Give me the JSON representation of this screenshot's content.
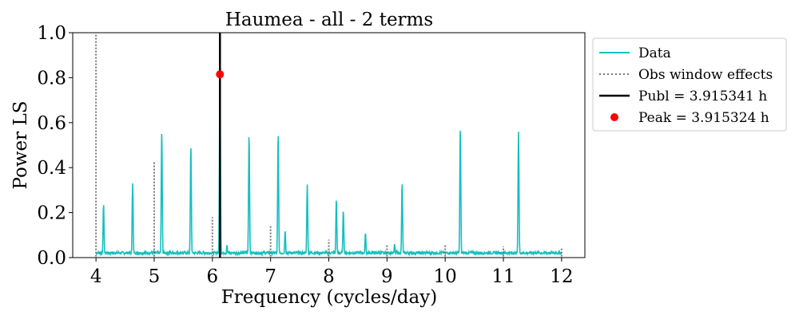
{
  "chart_data": {
    "type": "line",
    "title": "Haumea - all - 2 terms",
    "xlabel": "Frequency (cycles/day)",
    "ylabel": "Power LS",
    "xlim": [
      3.6,
      12.4
    ],
    "ylim": [
      0.0,
      1.0
    ],
    "xticks": [
      4,
      5,
      6,
      7,
      8,
      9,
      10,
      11,
      12
    ],
    "xtick_labels": [
      "4",
      "5",
      "6",
      "7",
      "8",
      "9",
      "10",
      "11",
      "12"
    ],
    "yticks": [
      0.0,
      0.2,
      0.4,
      0.6,
      0.8,
      1.0
    ],
    "ytick_labels": [
      "0.0",
      "0.2",
      "0.4",
      "0.6",
      "0.8",
      "1.0"
    ],
    "grid": false,
    "legend_position": "outside-right-top",
    "colors": {
      "data": "#17bfbf",
      "window": "#777777",
      "published": "#000000",
      "peak": "#ff0000"
    },
    "series": [
      {
        "name": "Data",
        "style": "solid",
        "baseline": 0.015,
        "peaks": [
          {
            "x": 4.13,
            "y": 0.24
          },
          {
            "x": 4.63,
            "y": 0.33
          },
          {
            "x": 5.13,
            "y": 0.565
          },
          {
            "x": 5.63,
            "y": 0.5
          },
          {
            "x": 6.13,
            "y": 0.81
          },
          {
            "x": 6.25,
            "y": 0.055
          },
          {
            "x": 6.63,
            "y": 0.55
          },
          {
            "x": 7.13,
            "y": 0.555
          },
          {
            "x": 7.25,
            "y": 0.12
          },
          {
            "x": 7.63,
            "y": 0.325
          },
          {
            "x": 8.13,
            "y": 0.26
          },
          {
            "x": 8.25,
            "y": 0.21
          },
          {
            "x": 8.63,
            "y": 0.11
          },
          {
            "x": 9.13,
            "y": 0.06
          },
          {
            "x": 9.26,
            "y": 0.335
          },
          {
            "x": 10.26,
            "y": 0.58
          },
          {
            "x": 11.26,
            "y": 0.56
          }
        ]
      },
      {
        "name": "Obs window effects",
        "style": "dotted",
        "peaks": [
          {
            "x": 4.0,
            "y": 1.0
          },
          {
            "x": 5.0,
            "y": 0.43
          },
          {
            "x": 6.0,
            "y": 0.18
          },
          {
            "x": 7.0,
            "y": 0.14
          },
          {
            "x": 8.0,
            "y": 0.08
          },
          {
            "x": 9.0,
            "y": 0.06
          },
          {
            "x": 10.0,
            "y": 0.06
          },
          {
            "x": 11.0,
            "y": 0.05
          },
          {
            "x": 12.0,
            "y": 0.04
          }
        ]
      },
      {
        "name": "Publ = 3.915341 h",
        "style": "vertical-line",
        "x": 6.13
      },
      {
        "name": "Peak = 3.915324 h",
        "style": "marker",
        "x": 6.13,
        "y": 0.815
      }
    ]
  }
}
